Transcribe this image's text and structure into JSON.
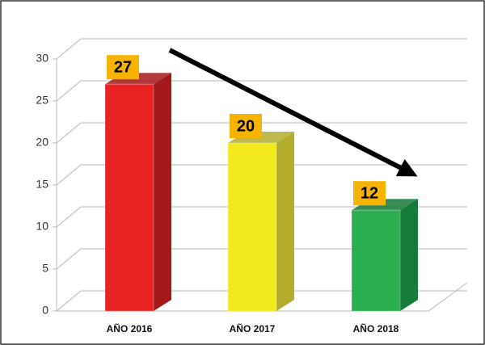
{
  "chart_data": {
    "type": "bar3d",
    "categories": [
      "AÑO 2016",
      "AÑO 2017",
      "AÑO 2018"
    ],
    "values": [
      27,
      20,
      12
    ],
    "colors": [
      "#e82222",
      "#f2ea1c",
      "#2aae50"
    ],
    "side_colors": [
      "#a3191b",
      "#b3ad2e",
      "#167a38"
    ],
    "label_box_color": "#f6b400",
    "ylim": [
      0,
      30
    ],
    "yticks": [
      0,
      5,
      10,
      15,
      20,
      25,
      30
    ],
    "grid": true
  }
}
